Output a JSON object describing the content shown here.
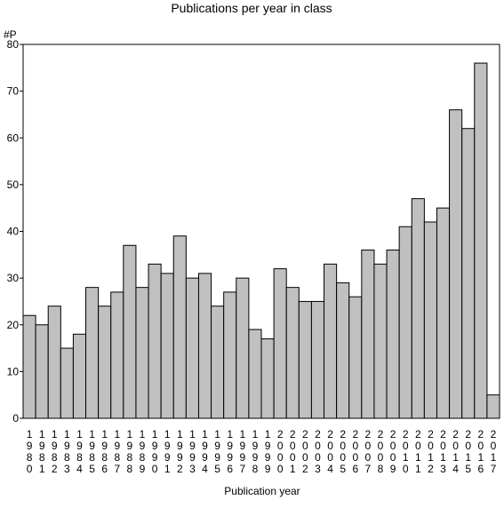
{
  "chart_data": {
    "type": "bar",
    "title": "Publications per year in class",
    "ylabel": "#P",
    "xlabel": "Publication year",
    "ylim": [
      0,
      80
    ],
    "yticks": [
      0,
      10,
      20,
      30,
      40,
      50,
      60,
      70,
      80
    ],
    "grid": false,
    "bar_color": "#c0c0c0",
    "bar_edge_color": "#000000",
    "categories": [
      "1980",
      "1981",
      "1982",
      "1983",
      "1984",
      "1985",
      "1986",
      "1987",
      "1988",
      "1989",
      "1990",
      "1991",
      "1992",
      "1993",
      "1994",
      "1995",
      "1996",
      "1997",
      "1998",
      "1999",
      "2000",
      "2001",
      "2002",
      "2003",
      "2004",
      "2005",
      "2006",
      "2007",
      "2008",
      "2009",
      "2010",
      "2011",
      "2012",
      "2013",
      "2014",
      "2015",
      "2016",
      "2017"
    ],
    "values": [
      22,
      20,
      24,
      15,
      18,
      28,
      24,
      27,
      37,
      28,
      33,
      31,
      39,
      30,
      31,
      24,
      27,
      30,
      19,
      17,
      32,
      28,
      25,
      25,
      33,
      29,
      26,
      36,
      33,
      36,
      41,
      47,
      42,
      45,
      66,
      62,
      76,
      5
    ]
  }
}
